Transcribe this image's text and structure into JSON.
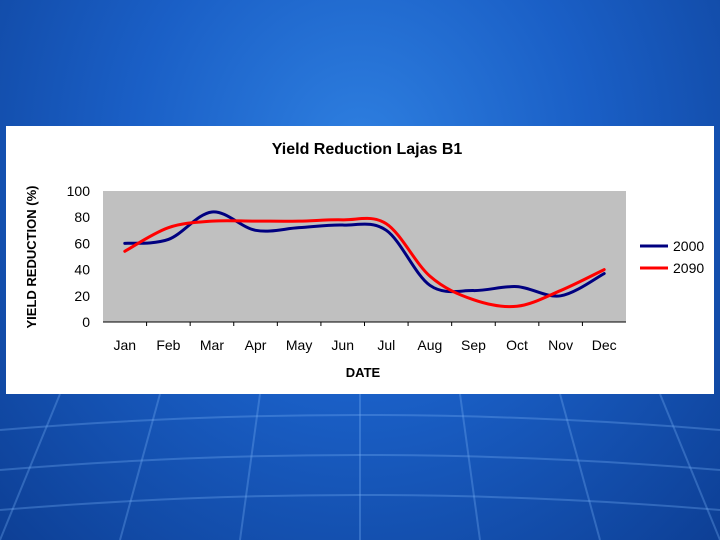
{
  "chart_data": {
    "type": "line",
    "title": "Yield Reduction Lajas B1",
    "xlabel": "DATE",
    "ylabel": "YIELD REDUCTION (%)",
    "ylim": [
      0,
      100
    ],
    "yticks": [
      0,
      20,
      40,
      60,
      80,
      100
    ],
    "categories": [
      "Jan",
      "Feb",
      "Mar",
      "Apr",
      "May",
      "Jun",
      "Jul",
      "Aug",
      "Sep",
      "Oct",
      "Nov",
      "Dec"
    ],
    "grid": false,
    "legend_position": "right",
    "plot_background": "#c0c0c0",
    "series": [
      {
        "name": "2000",
        "color": "#000080",
        "values": [
          60,
          63,
          84,
          70,
          72,
          74,
          70,
          28,
          24,
          27,
          20,
          37
        ]
      },
      {
        "name": "2090",
        "color": "#ff0000",
        "values": [
          54,
          72,
          77,
          77,
          77,
          78,
          75,
          35,
          17,
          12,
          24,
          40
        ]
      }
    ]
  }
}
